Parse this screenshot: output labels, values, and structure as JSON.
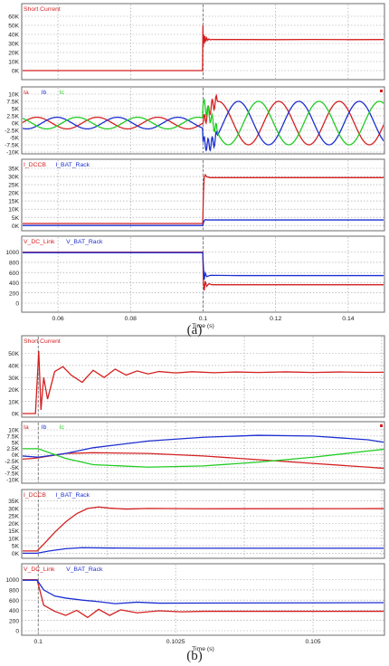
{
  "figure": {
    "caption_a": "(a)",
    "caption_b": "(b)"
  },
  "colors": {
    "red": "#d42020",
    "blue": "#1c2fd0",
    "green": "#22cc22",
    "grid": "#9a9a9a",
    "frame": "#6b6b6b"
  },
  "chart_data": [
    {
      "type": "line",
      "panel": "(a) Short Current",
      "title": "",
      "legend": [
        "Short Current"
      ],
      "xlim": [
        0.05,
        0.15
      ],
      "ylim": [
        0,
        60000
      ],
      "yticks": [
        0,
        10000,
        20000,
        30000,
        40000,
        50000,
        60000
      ],
      "ytick_labels": [
        "0K",
        "10K",
        "20K",
        "30K",
        "40K",
        "50K",
        "60K"
      ],
      "x_grid": [
        0.06,
        0.08,
        0.1,
        0.12,
        0.14
      ],
      "grid": true,
      "series": [
        {
          "name": "Short Current",
          "color": "red",
          "x": [
            0.05,
            0.09985,
            0.09995,
            0.10005,
            0.10015,
            0.10035,
            0.10055,
            0.10075,
            0.101,
            0.1013,
            0.1016,
            0.102,
            0.1025,
            0.103,
            0.11,
            0.12,
            0.13,
            0.14,
            0.15
          ],
          "y": [
            0,
            0,
            50000,
            26000,
            40000,
            30000,
            38000,
            32000,
            36000,
            33500,
            35000,
            34000,
            34500,
            34300,
            34300,
            34200,
            34400,
            34200,
            34300
          ]
        }
      ]
    },
    {
      "type": "line",
      "panel": "(a) Ia Ib Ic",
      "title": "",
      "legend": [
        "Ia",
        "Ib",
        "Ic"
      ],
      "xlim": [
        0.05,
        0.15
      ],
      "ylim": [
        -10000,
        10000
      ],
      "yticks": [
        -10000,
        -7500,
        -5000,
        -2500,
        0,
        2500,
        5000,
        7500,
        10000
      ],
      "ytick_labels": [
        "-10K",
        "-7.5K",
        "-5K",
        "-2.5K",
        "0K",
        "2.5K",
        "5K",
        "7.5K",
        "10K"
      ],
      "x_grid": [
        0.06,
        0.08,
        0.1,
        0.12,
        0.14
      ],
      "grid": true,
      "waveform": {
        "frequency_hz": 60,
        "pre_fault_amplitude": 2000,
        "post_fault_amplitude": 7500,
        "fault_time": 0.1
      },
      "series": [
        {
          "name": "Ia",
          "color": "red",
          "phase_deg": 0
        },
        {
          "name": "Ib",
          "color": "blue",
          "phase_deg": -120
        },
        {
          "name": "Ic",
          "color": "green",
          "phase_deg": 120
        }
      ]
    },
    {
      "type": "line",
      "panel": "(a) I_DCCB I_BAT_Rack",
      "title": "",
      "legend": [
        "I_DCCB",
        "I_BAT_Rack"
      ],
      "xlim": [
        0.05,
        0.15
      ],
      "ylim": [
        -1000,
        35000
      ],
      "yticks": [
        0,
        5000,
        10000,
        15000,
        20000,
        25000,
        30000,
        35000
      ],
      "ytick_labels": [
        "0K",
        "5K",
        "10K",
        "15K",
        "20K",
        "25K",
        "30K",
        "35K"
      ],
      "x_grid": [
        0.06,
        0.08,
        0.1,
        0.12,
        0.14
      ],
      "grid": true,
      "series": [
        {
          "name": "I_DCCB",
          "color": "red",
          "x": [
            0.05,
            0.0999,
            0.1001,
            0.1003,
            0.1006,
            0.101,
            0.102,
            0.11,
            0.15
          ],
          "y": [
            1200,
            1200,
            20000,
            29500,
            31000,
            29800,
            29300,
            29300,
            29300
          ]
        },
        {
          "name": "I_BAT_Rack",
          "color": "blue",
          "x": [
            0.05,
            0.0999,
            0.1002,
            0.1006,
            0.1012,
            0.11,
            0.15
          ],
          "y": [
            0,
            0,
            2500,
            3600,
            3400,
            3400,
            3400
          ]
        }
      ]
    },
    {
      "type": "line",
      "panel": "(a) V_DC_Link V_BAT_Rack",
      "title": "",
      "legend": [
        "V_DC_Link",
        "V_BAT_Rack"
      ],
      "xlabel": "Time (s)",
      "xlim": [
        0.05,
        0.15
      ],
      "ylim": [
        0,
        1100
      ],
      "yticks": [
        0,
        200,
        400,
        600,
        800,
        1000
      ],
      "ytick_labels": [
        "0",
        "200",
        "400",
        "600",
        "800",
        "1000"
      ],
      "xticks": [
        0.06,
        0.08,
        0.1,
        0.12,
        0.14
      ],
      "xtick_labels": [
        "0.06",
        "0.08",
        "0.1",
        "0.12",
        "0.14"
      ],
      "grid": true,
      "series": [
        {
          "name": "V_DC_Link",
          "color": "red",
          "x": [
            0.05,
            0.0999,
            0.1001,
            0.1003,
            0.1006,
            0.101,
            0.1016,
            0.1025,
            0.11,
            0.15
          ],
          "y": [
            1000,
            1000,
            400,
            250,
            430,
            330,
            380,
            360,
            360,
            360
          ]
        },
        {
          "name": "V_BAT_Rack",
          "color": "blue",
          "x": [
            0.05,
            0.0999,
            0.1001,
            0.1003,
            0.1006,
            0.101,
            0.102,
            0.11,
            0.15
          ],
          "y": [
            990,
            990,
            700,
            460,
            590,
            520,
            545,
            540,
            540
          ]
        }
      ]
    },
    {
      "type": "line",
      "panel": "(b) Short Current",
      "title": "",
      "legend": [
        "Short Current"
      ],
      "xlim": [
        0.0997,
        0.1063
      ],
      "ylim": [
        0,
        55000
      ],
      "yticks": [
        0,
        10000,
        20000,
        30000,
        40000,
        50000
      ],
      "ytick_labels": [
        "0K",
        "10K",
        "20K",
        "30K",
        "40K",
        "50K"
      ],
      "x_grid": [
        0.1,
        0.10125,
        0.1025,
        0.10375,
        0.105,
        0.10625
      ],
      "grid": true,
      "series": [
        {
          "name": "Short Current",
          "color": "red",
          "x": [
            0.0997,
            0.09995,
            0.10001,
            0.10005,
            0.1001,
            0.10017,
            0.1003,
            0.10045,
            0.1006,
            0.1008,
            0.101,
            0.1012,
            0.1014,
            0.1016,
            0.1018,
            0.102,
            0.1022,
            0.1025,
            0.1028,
            0.1032,
            0.1036,
            0.104,
            0.1045,
            0.105,
            0.1055,
            0.106,
            0.1063
          ],
          "y": [
            0,
            0,
            52000,
            3000,
            30000,
            12000,
            35000,
            39000,
            32000,
            26000,
            36000,
            30000,
            37000,
            32000,
            35500,
            33000,
            35000,
            33800,
            34800,
            34000,
            34600,
            34200,
            34700,
            34200,
            34600,
            34300,
            34400
          ]
        }
      ]
    },
    {
      "type": "line",
      "panel": "(b) Ia Ib Ic",
      "title": "",
      "legend": [
        "Ia",
        "Ib",
        "Ic"
      ],
      "xlim": [
        0.0997,
        0.1063
      ],
      "ylim": [
        -10000,
        10000
      ],
      "yticks": [
        -10000,
        -7500,
        -5000,
        -2500,
        0,
        2500,
        5000,
        7500,
        10000
      ],
      "ytick_labels": [
        "-10K",
        "-7.5K",
        "-5K",
        "-2.5K",
        "0K",
        "2.5K",
        "5K",
        "7.5K",
        "10K"
      ],
      "x_grid": [
        0.1,
        0.10125,
        0.1025,
        0.10375,
        0.105,
        0.10625
      ],
      "grid": true,
      "series": [
        {
          "name": "Ia",
          "color": "red",
          "x": [
            0.0997,
            0.0999,
            0.1,
            0.1005,
            0.101,
            0.102,
            0.103,
            0.104,
            0.105,
            0.106,
            0.1063
          ],
          "y": [
            -1800,
            -1500,
            -1200,
            500,
            800,
            500,
            -500,
            -2000,
            -3500,
            -5000,
            -5500
          ]
        },
        {
          "name": "Ib",
          "color": "blue",
          "x": [
            0.0997,
            0.1,
            0.1005,
            0.101,
            0.102,
            0.103,
            0.104,
            0.105,
            0.106,
            0.1063
          ],
          "y": [
            -500,
            -1000,
            500,
            2800,
            5500,
            7000,
            7800,
            7500,
            6000,
            5000
          ]
        },
        {
          "name": "Ic",
          "color": "green",
          "x": [
            0.0997,
            0.0999,
            0.1,
            0.1005,
            0.101,
            0.102,
            0.103,
            0.104,
            0.105,
            0.106,
            0.1063
          ],
          "y": [
            2400,
            2400,
            2400,
            -1500,
            -4000,
            -5000,
            -4500,
            -3000,
            -1000,
            1500,
            2200
          ]
        }
      ]
    },
    {
      "type": "line",
      "panel": "(b) I_DCCB I_BAT_Rack",
      "title": "",
      "legend": [
        "I_DCCB",
        "I_BAT_Rack"
      ],
      "xlim": [
        0.0997,
        0.1063
      ],
      "ylim": [
        -1000,
        36000
      ],
      "yticks": [
        0,
        5000,
        10000,
        15000,
        20000,
        25000,
        30000,
        35000
      ],
      "ytick_labels": [
        "0K",
        "5K",
        "10K",
        "15K",
        "20K",
        "25K",
        "30K",
        "35K"
      ],
      "x_grid": [
        0.1,
        0.10125,
        0.1025,
        0.10375,
        0.105,
        0.10625
      ],
      "grid": true,
      "series": [
        {
          "name": "I_DCCB",
          "color": "red",
          "x": [
            0.0997,
            0.09998,
            0.1001,
            0.1003,
            0.1005,
            0.1007,
            0.1009,
            0.1011,
            0.1013,
            0.1016,
            0.102,
            0.103,
            0.1063
          ],
          "y": [
            1500,
            1500,
            6000,
            14000,
            21000,
            26500,
            30000,
            31000,
            30200,
            29600,
            30000,
            29800,
            29900
          ]
        },
        {
          "name": "I_BAT_Rack",
          "color": "blue",
          "x": [
            0.0997,
            0.09998,
            0.1002,
            0.1005,
            0.1008,
            0.1012,
            0.102,
            0.1063
          ],
          "y": [
            0,
            0,
            1500,
            3000,
            3700,
            3500,
            3300,
            3300
          ]
        }
      ]
    },
    {
      "type": "line",
      "panel": "(b) V_DC_Link V_BAT_Rack",
      "title": "",
      "legend": [
        "V_DC_Link",
        "V_BAT_Rack"
      ],
      "xlabel": "Time (s)",
      "xlim": [
        0.0997,
        0.1063
      ],
      "ylim": [
        0,
        1100
      ],
      "yticks": [
        0,
        200,
        400,
        600,
        800,
        1000
      ],
      "ytick_labels": [
        "0",
        "200",
        "400",
        "600",
        "800",
        "1000"
      ],
      "xticks": [
        0.1,
        0.1025,
        0.105
      ],
      "xtick_labels": [
        "0.1",
        "0.1025",
        "0.105"
      ],
      "grid": true,
      "series": [
        {
          "name": "V_DC_Link",
          "color": "red",
          "x": [
            0.0997,
            0.09998,
            0.1001,
            0.1003,
            0.1005,
            0.1007,
            0.1009,
            0.1011,
            0.1013,
            0.1015,
            0.1018,
            0.1022,
            0.1026,
            0.103,
            0.1063
          ],
          "y": [
            1000,
            1000,
            500,
            380,
            300,
            400,
            260,
            420,
            300,
            410,
            350,
            390,
            370,
            380,
            380
          ]
        },
        {
          "name": "V_BAT_Rack",
          "color": "blue",
          "x": [
            0.0997,
            0.09998,
            0.1001,
            0.1003,
            0.1005,
            0.1008,
            0.1011,
            0.1014,
            0.1018,
            0.1022,
            0.1063
          ],
          "y": [
            990,
            990,
            800,
            680,
            640,
            600,
            570,
            530,
            560,
            540,
            550
          ]
        }
      ]
    }
  ]
}
